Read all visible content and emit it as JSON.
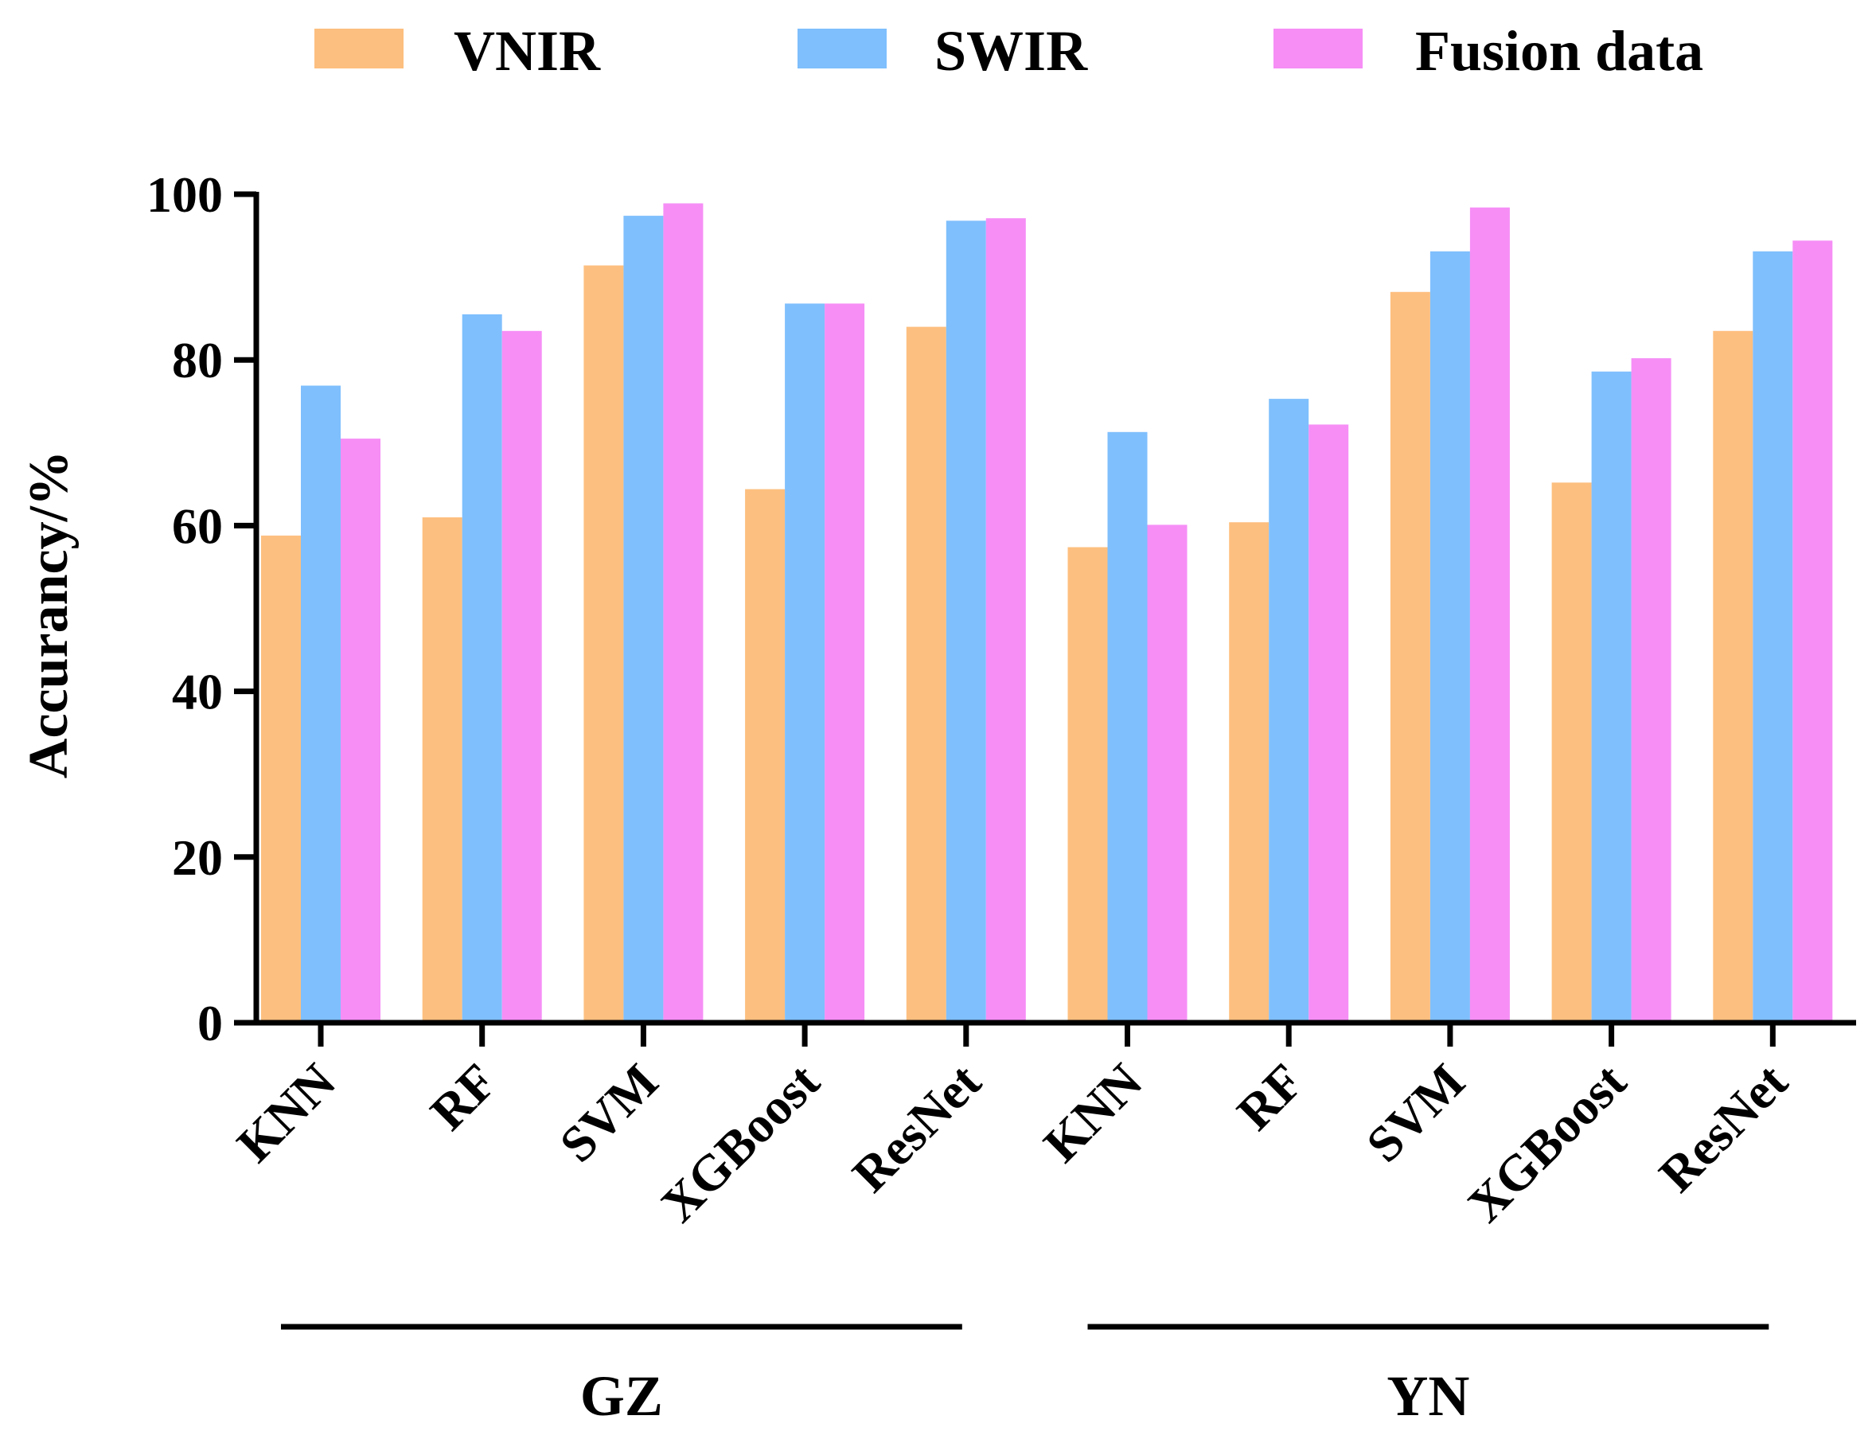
{
  "chart_data": {
    "type": "bar",
    "title": "",
    "xlabel": "",
    "ylabel": "Accurancy/%",
    "ylim": [
      0,
      100
    ],
    "yticks": [
      0,
      20,
      40,
      60,
      80,
      100
    ],
    "legend_position": "top",
    "categories": [
      "KNN",
      "RF",
      "SVM",
      "XGBoost",
      "ResNet",
      "KNN",
      "RF",
      "SVM",
      "XGBoost",
      "ResNet"
    ],
    "groups": [
      {
        "label": "GZ",
        "start": 0,
        "end": 4
      },
      {
        "label": "YN",
        "start": 5,
        "end": 9
      }
    ],
    "series": [
      {
        "name": "VNIR",
        "color": "#fdbf7f",
        "values": [
          58.8,
          61.0,
          91.4,
          64.4,
          84.0,
          57.4,
          60.4,
          88.2,
          65.2,
          83.5
        ]
      },
      {
        "name": "SWIR",
        "color": "#7fbffd",
        "values": [
          76.9,
          85.5,
          97.4,
          86.8,
          96.8,
          71.3,
          75.3,
          93.1,
          78.6,
          93.1
        ]
      },
      {
        "name": "Fusion data",
        "color": "#f68ef6",
        "values": [
          70.5,
          83.5,
          98.9,
          86.8,
          97.1,
          60.1,
          72.2,
          98.4,
          80.2,
          94.4
        ]
      }
    ]
  }
}
